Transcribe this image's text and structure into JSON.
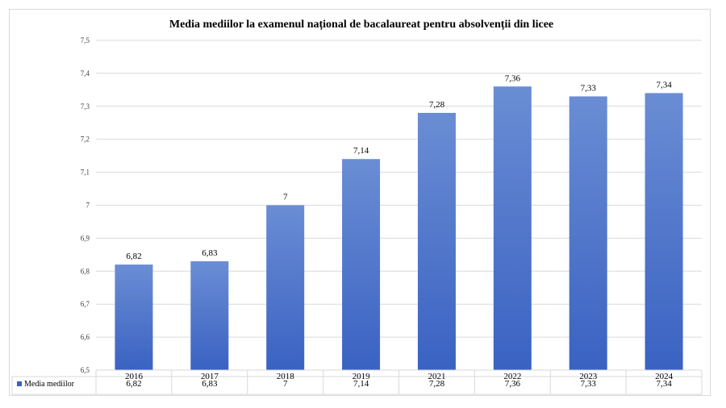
{
  "chart_data": {
    "type": "bar",
    "title": "Media mediilor la examenul național de bacalaureat pentru absolvenții din licee",
    "categories": [
      "2016",
      "2017",
      "2018",
      "2019",
      "2021",
      "2022",
      "2023",
      "2024"
    ],
    "series": [
      {
        "name": "Media mediilor",
        "values": [
          6.82,
          6.83,
          7,
          7.14,
          7.28,
          7.36,
          7.33,
          7.34
        ],
        "labels": [
          "6,82",
          "6,83",
          "7",
          "7,14",
          "7,28",
          "7,36",
          "7,33",
          "7,34"
        ],
        "color_top": "#6a8dd4",
        "color_bottom": "#3a62c2"
      }
    ],
    "ylim": [
      6.5,
      7.5
    ],
    "yticks": [
      "6,5",
      "6,6",
      "6,7",
      "6,8",
      "6,9",
      "7",
      "7,1",
      "7,2",
      "7,3",
      "7,4",
      "7,5"
    ],
    "xlabel": "",
    "ylabel": "",
    "grid": true,
    "legend": "data-table",
    "gridline_color": "#d9d9d9"
  }
}
